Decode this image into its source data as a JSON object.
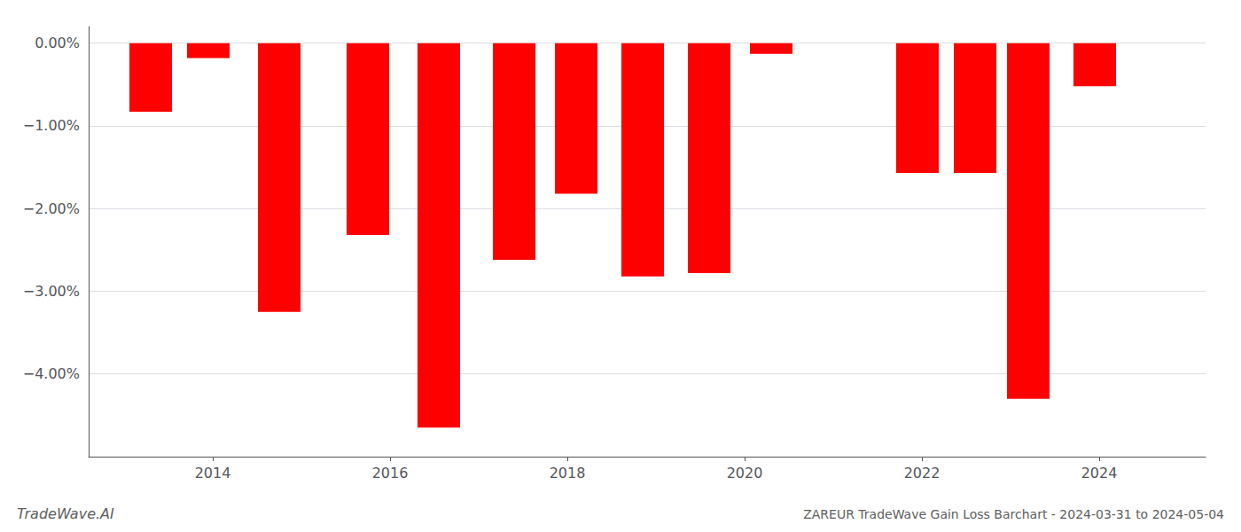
{
  "chart_data": {
    "type": "bar",
    "title": "ZAREUR TradeWave Gain Loss Barchart - 2024-03-31 to 2024-05-04",
    "annotations": [
      "TradeWave.AI"
    ],
    "x": [
      2013.3,
      2013.95,
      2014.75,
      2015.75,
      2016.55,
      2017.4,
      2018.1,
      2018.85,
      2019.6,
      2020.3,
      2021.95,
      2022.6,
      2023.2,
      2023.95
    ],
    "values": [
      -0.83,
      -0.18,
      -3.25,
      -2.32,
      -4.65,
      -2.62,
      -1.82,
      -2.82,
      -2.78,
      -0.13,
      -1.57,
      -1.57,
      -4.3,
      -0.52
    ],
    "color": "#ff0000",
    "xlim": [
      2012.6,
      2025.2
    ],
    "xticks": [
      2014,
      2016,
      2018,
      2020,
      2022,
      2024
    ],
    "ylim": [
      -5.0,
      0.2
    ],
    "yticks": [
      {
        "value": 0.0,
        "label": "0.00%"
      },
      {
        "value": -1.0,
        "label": "−1.00%"
      },
      {
        "value": -2.0,
        "label": "−2.00%"
      },
      {
        "value": -3.0,
        "label": "−3.00%"
      },
      {
        "value": -4.0,
        "label": "−4.00%"
      }
    ],
    "grid": true
  }
}
